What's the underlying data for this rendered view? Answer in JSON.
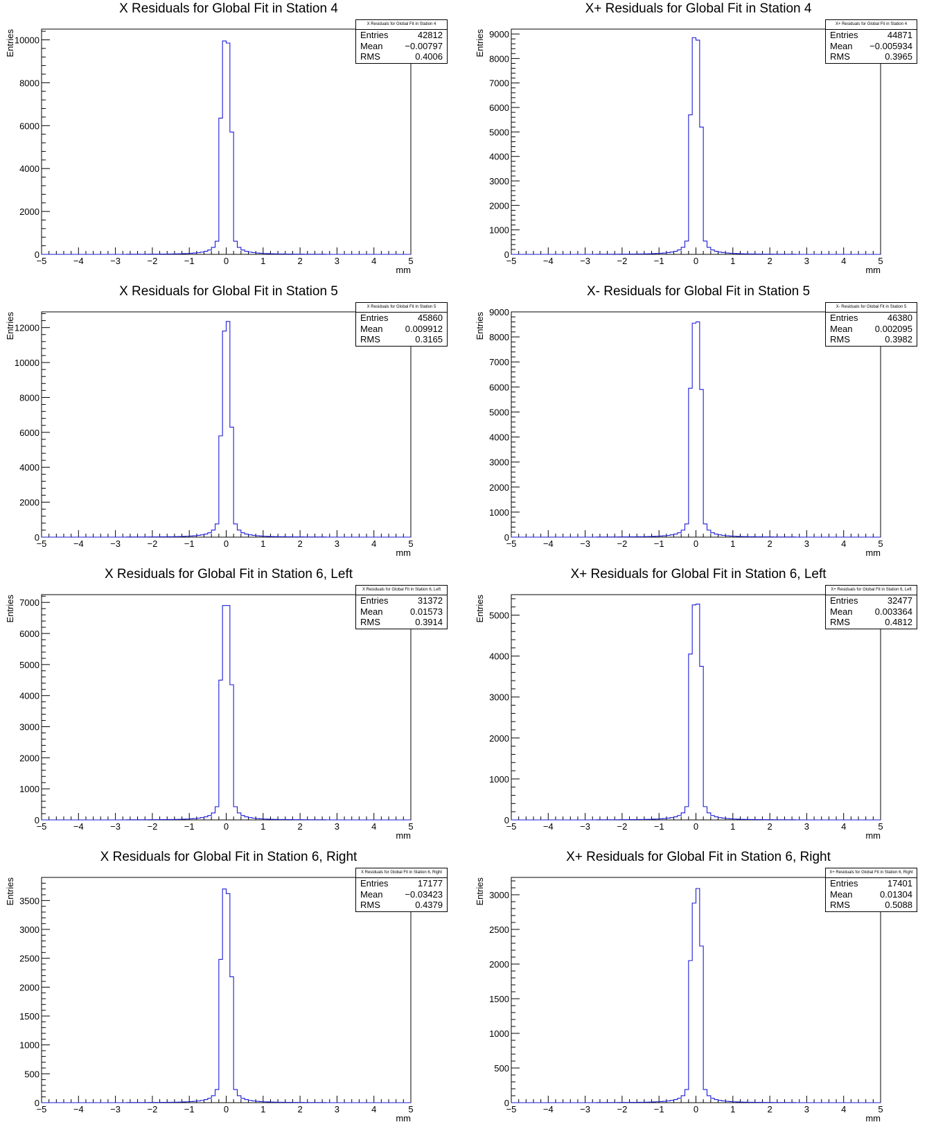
{
  "chart_data": [
    {
      "type": "histogram",
      "title": "X Residuals for Global Fit in Station 4",
      "xlabel": "mm",
      "ylabel": "Entries",
      "xlim": [
        -5,
        5
      ],
      "ylim": [
        0,
        10500
      ],
      "yticks": [
        0,
        2000,
        4000,
        6000,
        8000,
        10000
      ],
      "xticks": [
        -5,
        -4,
        -3,
        -2,
        -1,
        0,
        1,
        2,
        3,
        4,
        5
      ],
      "line_color": "#1a1ad6",
      "bins": [
        -5,
        5,
        100
      ],
      "peak_values": [
        {
          "x": -0.15,
          "y": 6350
        },
        {
          "x": -0.05,
          "y": 9950
        },
        {
          "x": 0.05,
          "y": 9850
        },
        {
          "x": 0.15,
          "y": 5700
        }
      ],
      "stats": {
        "header": "X Residuals for Global Fit in Station 4",
        "entries": "42812",
        "mean": "−0.00797",
        "rms": "0.4006"
      }
    },
    {
      "type": "histogram",
      "title": "X+ Residuals for Global Fit in Station 4",
      "xlabel": "mm",
      "ylabel": "Entries",
      "xlim": [
        -5,
        5
      ],
      "ylim": [
        0,
        9200
      ],
      "yticks": [
        0,
        1000,
        2000,
        3000,
        4000,
        5000,
        6000,
        7000,
        8000,
        9000
      ],
      "xticks": [
        -5,
        -4,
        -3,
        -2,
        -1,
        0,
        1,
        2,
        3,
        4,
        5
      ],
      "line_color": "#1a1ad6",
      "bins": [
        -5,
        5,
        100
      ],
      "peak_values": [
        {
          "x": -0.15,
          "y": 5700
        },
        {
          "x": -0.05,
          "y": 8850
        },
        {
          "x": 0.05,
          "y": 8750
        },
        {
          "x": 0.15,
          "y": 5200
        }
      ],
      "stats": {
        "header": "X+ Residuals for Global Fit in Station 4",
        "entries": "44871",
        "mean": "−0.005934",
        "rms": "0.3965"
      }
    },
    {
      "type": "histogram",
      "title": "X Residuals for Global Fit in Station 5",
      "xlabel": "mm",
      "ylabel": "Entries",
      "xlim": [
        -5,
        5
      ],
      "ylim": [
        0,
        12900
      ],
      "yticks": [
        0,
        2000,
        4000,
        6000,
        8000,
        10000,
        12000
      ],
      "xticks": [
        -5,
        -4,
        -3,
        -2,
        -1,
        0,
        1,
        2,
        3,
        4,
        5
      ],
      "line_color": "#1a1ad6",
      "bins": [
        -5,
        5,
        100
      ],
      "peak_values": [
        {
          "x": -0.15,
          "y": 5800
        },
        {
          "x": -0.05,
          "y": 11800
        },
        {
          "x": 0.05,
          "y": 12350
        },
        {
          "x": 0.15,
          "y": 6300
        }
      ],
      "stats": {
        "header": "X Residuals for Global Fit in Station 5",
        "entries": "45860",
        "mean": "0.009912",
        "rms": "0.3165"
      }
    },
    {
      "type": "histogram",
      "title": "X- Residuals for Global Fit in Station 5",
      "xlabel": "mm",
      "ylabel": "Entries",
      "xlim": [
        -5,
        5
      ],
      "ylim": [
        0,
        9000
      ],
      "yticks": [
        0,
        1000,
        2000,
        3000,
        4000,
        5000,
        6000,
        7000,
        8000,
        9000
      ],
      "xticks": [
        -5,
        -4,
        -3,
        -2,
        -1,
        0,
        1,
        2,
        3,
        4,
        5
      ],
      "line_color": "#1a1ad6",
      "bins": [
        -5,
        5,
        100
      ],
      "peak_values": [
        {
          "x": -0.15,
          "y": 5950
        },
        {
          "x": -0.05,
          "y": 8550
        },
        {
          "x": 0.05,
          "y": 8600
        },
        {
          "x": 0.15,
          "y": 5900
        }
      ],
      "stats": {
        "header": "X- Residuals for Global Fit in Station 5",
        "entries": "46380",
        "mean": "0.002095",
        "rms": "0.3982"
      }
    },
    {
      "type": "histogram",
      "title": "X Residuals for Global Fit in Station 6, Left",
      "xlabel": "mm",
      "ylabel": "Entries",
      "xlim": [
        -5,
        5
      ],
      "ylim": [
        0,
        7250
      ],
      "yticks": [
        0,
        1000,
        2000,
        3000,
        4000,
        5000,
        6000,
        7000
      ],
      "xticks": [
        -5,
        -4,
        -3,
        -2,
        -1,
        0,
        1,
        2,
        3,
        4,
        5
      ],
      "line_color": "#1a1ad6",
      "bins": [
        -5,
        5,
        100
      ],
      "peak_values": [
        {
          "x": -0.15,
          "y": 4500
        },
        {
          "x": -0.05,
          "y": 6900
        },
        {
          "x": 0.05,
          "y": 6900
        },
        {
          "x": 0.15,
          "y": 4350
        }
      ],
      "stats": {
        "header": "X Residuals for Global Fit in Station 6, Left",
        "entries": "31372",
        "mean": "0.01573",
        "rms": "0.3914"
      }
    },
    {
      "type": "histogram",
      "title": "X+ Residuals for Global Fit in Station 6, Left",
      "xlabel": "mm",
      "ylabel": "Entries",
      "xlim": [
        -5,
        5
      ],
      "ylim": [
        0,
        5500
      ],
      "yticks": [
        0,
        1000,
        2000,
        3000,
        4000,
        5000
      ],
      "xticks": [
        -5,
        -4,
        -3,
        -2,
        -1,
        0,
        1,
        2,
        3,
        4,
        5
      ],
      "line_color": "#1a1ad6",
      "bins": [
        -5,
        5,
        100
      ],
      "peak_values": [
        {
          "x": -0.15,
          "y": 4050
        },
        {
          "x": -0.05,
          "y": 5250
        },
        {
          "x": 0.05,
          "y": 5270
        },
        {
          "x": 0.15,
          "y": 3750
        }
      ],
      "stats": {
        "header": "X+ Residuals for Global Fit in Station 6, Left",
        "entries": "32477",
        "mean": "0.003364",
        "rms": "0.4812"
      }
    },
    {
      "type": "histogram",
      "title": "X Residuals for Global Fit in Station 6, Right",
      "xlabel": "mm",
      "ylabel": "Entries",
      "xlim": [
        -5,
        5
      ],
      "ylim": [
        0,
        3900
      ],
      "yticks": [
        0,
        500,
        1000,
        1500,
        2000,
        2500,
        3000,
        3500
      ],
      "xticks": [
        -5,
        -4,
        -3,
        -2,
        -1,
        0,
        1,
        2,
        3,
        4,
        5
      ],
      "line_color": "#1a1ad6",
      "bins": [
        -5,
        5,
        100
      ],
      "peak_values": [
        {
          "x": -0.15,
          "y": 2480
        },
        {
          "x": -0.05,
          "y": 3700
        },
        {
          "x": 0.05,
          "y": 3620
        },
        {
          "x": 0.15,
          "y": 2180
        }
      ],
      "stats": {
        "header": "X Residuals for Global Fit in Station 6, Right",
        "entries": "17177",
        "mean": "−0.03423",
        "rms": "0.4379"
      }
    },
    {
      "type": "histogram",
      "title": "X+ Residuals for Global Fit in Station 6, Right",
      "xlabel": "mm",
      "ylabel": "Entries",
      "xlim": [
        -5,
        5
      ],
      "ylim": [
        0,
        3250
      ],
      "yticks": [
        0,
        500,
        1000,
        1500,
        2000,
        2500,
        3000
      ],
      "xticks": [
        -5,
        -4,
        -3,
        -2,
        -1,
        0,
        1,
        2,
        3,
        4,
        5
      ],
      "line_color": "#1a1ad6",
      "bins": [
        -5,
        5,
        100
      ],
      "peak_values": [
        {
          "x": -0.15,
          "y": 2050
        },
        {
          "x": -0.05,
          "y": 2880
        },
        {
          "x": 0.05,
          "y": 3090
        },
        {
          "x": 0.15,
          "y": 2260
        }
      ],
      "stats": {
        "header": "X+ Residuals for Global Fit in Station 6, Right",
        "entries": "17401",
        "mean": "0.01304",
        "rms": "0.5088"
      }
    }
  ],
  "labels": {
    "entries": "Entries",
    "mean": "Mean",
    "rms": "RMS"
  }
}
